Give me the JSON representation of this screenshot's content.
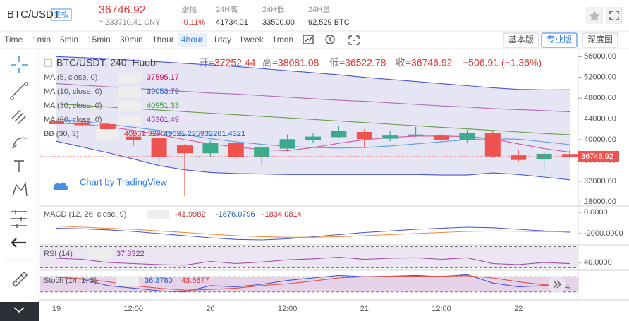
{
  "header": {
    "symbol": "BTC/USDT",
    "badge": "主板",
    "price": "36746.92",
    "cny": "≈ 233710.41 CNY",
    "stats": [
      {
        "label": "涨幅",
        "value": "-0.11%"
      },
      {
        "label": "24H高",
        "value": "41734.01"
      },
      {
        "label": "24H低",
        "value": "33500.00"
      },
      {
        "label": "24H量",
        "value": "92,529 BTC"
      }
    ]
  },
  "toolbar": {
    "intervals": [
      {
        "label": "Time"
      },
      {
        "label": "1min"
      },
      {
        "label": "5min"
      },
      {
        "label": "15min"
      },
      {
        "label": "30min"
      },
      {
        "label": "1hour"
      },
      {
        "label": "4hour",
        "active": true
      },
      {
        "label": "1day"
      },
      {
        "label": "1week"
      },
      {
        "label": "1mon"
      }
    ],
    "views": [
      {
        "label": "基本版"
      },
      {
        "label": "专业版",
        "active": true
      },
      {
        "label": "深度图"
      }
    ]
  },
  "chart_data": {
    "type": "candlestick",
    "title": "BTC/USDT, 240, Huobi",
    "ohlc_legend": [
      {
        "label": "开=",
        "value": "37252.44"
      },
      {
        "label": "高=",
        "value": "38081.08"
      },
      {
        "label": "低=",
        "value": "36522.78"
      },
      {
        "label": "收=",
        "value": "36746.92"
      }
    ],
    "change": "−506.91 (−1.36%)",
    "watermark": "Chart by TradingView",
    "categories": [
      "19",
      null,
      null,
      "12:00",
      null,
      null,
      "20",
      null,
      null,
      "12:00",
      null,
      null,
      "21",
      null,
      null,
      "12:00",
      null,
      null,
      "22",
      null,
      null
    ],
    "open": [
      43500,
      43300,
      43000,
      40600,
      40300,
      38900,
      37400,
      39400,
      36700,
      38300,
      40000,
      40500,
      41500,
      40200,
      40700,
      40800,
      39900,
      41300,
      37000,
      36300,
      37252.44
    ],
    "high": [
      43800,
      43600,
      43300,
      41000,
      40500,
      39200,
      39800,
      40000,
      38700,
      41000,
      41300,
      42600,
      42000,
      41600,
      42500,
      41100,
      41900,
      41700,
      38000,
      37600,
      38081.08
    ],
    "low": [
      43000,
      42600,
      40200,
      38800,
      35600,
      29100,
      36700,
      36400,
      35000,
      37800,
      39400,
      40300,
      38500,
      39700,
      40500,
      39500,
      39300,
      36500,
      35800,
      34100,
      36522.78
    ],
    "close": [
      43000,
      42800,
      40600,
      40000,
      36700,
      37400,
      39400,
      36700,
      38500,
      40100,
      40600,
      41700,
      40100,
      40800,
      41000,
      39900,
      41300,
      36800,
      36100,
      37300,
      36746.92
    ],
    "up_color": "#3bab8e",
    "down_color": "#ef5350",
    "last_price": 36746.92,
    "ylim": [
      27500,
      57400
    ],
    "yticks": [
      {
        "value": 56000,
        "label": "56000.00"
      },
      {
        "value": 52000,
        "label": "52000.00"
      },
      {
        "value": 48000,
        "label": "48000.00"
      },
      {
        "value": 44000,
        "label": "44000.00"
      },
      {
        "value": 40000,
        "label": "40000.00"
      },
      {
        "value": 36000,
        "label": "36000.00"
      },
      {
        "value": 32000,
        "label": "32000.00"
      },
      {
        "value": 28000,
        "label": "28000.00"
      }
    ],
    "indicators": [
      {
        "label": "MA (5, close, 0)",
        "readout": [
          "37595.17"
        ],
        "readout_colors": [
          "#c2185b"
        ],
        "lines": [
          {
            "color": "#d6569e",
            "values": [
              43200,
              43000,
              42500,
              41800,
              41000,
              40000,
              39200,
              38600,
              38100,
              37900,
              38500,
              39300,
              40000,
              40400,
              40700,
              40700,
              40600,
              40200,
              39200,
              38300,
              37595.17
            ]
          }
        ]
      },
      {
        "label": "MA (10, close, 0)",
        "readout": [
          "39053.79"
        ],
        "readout_colors": [
          "#1e5bbf"
        ],
        "lines": [
          {
            "color": "#5b9be6",
            "values": [
              44000,
              43500,
              43000,
              42400,
              41800,
              41000,
              40200,
              39600,
              39100,
              38700,
              38500,
              38400,
              38500,
              38800,
              39200,
              39600,
              40000,
              40200,
              40100,
              39600,
              39053.79
            ]
          }
        ]
      },
      {
        "label": "MA (30, close, 0)",
        "readout": [
          "40951.33"
        ],
        "readout_colors": [
          "#2e9a2e"
        ],
        "lines": [
          {
            "color": "#6a9a4e",
            "values": [
              46900,
              46600,
              46300,
              46000,
              45700,
              45400,
              45100,
              44800,
              44500,
              44200,
              43900,
              43600,
              43300,
              43000,
              42700,
              42400,
              42100,
              41800,
              41500,
              41200,
              40951.33
            ]
          }
        ]
      },
      {
        "label": "MA (60, close, 0)",
        "readout": [
          "45361.49"
        ],
        "readout_colors": [
          "#8e24aa"
        ],
        "lines": [
          {
            "color": "#b06ab3",
            "values": [
              50800,
              50500,
              50200,
              49900,
              49600,
              49300,
              49000,
              48800,
              48500,
              48200,
              47900,
              47600,
              47400,
              47100,
              46800,
              46500,
              46300,
              46000,
              45800,
              45600,
              45361.49
            ]
          }
        ]
      },
      {
        "label": "BB (30, 3)",
        "readout": [
          "40951.3290",
          "49621.2259",
          "32281.4321"
        ],
        "readout_colors": [
          "#d32f2f",
          "#1e5bbf",
          "#1e5bbf"
        ],
        "fill": "#e6e5f3",
        "lines": [
          {
            "color": "#4a56d6",
            "values": [
              56000,
              55800,
              55600,
              55300,
              55000,
              54700,
              54400,
              54100,
              53700,
              53300,
              52900,
              52500,
              52000,
              51600,
              51200,
              50800,
              50400,
              50000,
              49700,
              49600,
              49621.2259
            ]
          },
          {
            "color": "#4a56d6",
            "values": [
              39700,
              38600,
              37500,
              36300,
              35000,
              34200,
              33700,
              33500,
              33400,
              33300,
              33300,
              33300,
              33300,
              33300,
              33300,
              33200,
              33200,
              33600,
              33300,
              32800,
              32281.4321
            ]
          }
        ]
      }
    ],
    "panes": [
      {
        "label": "MACD (12, 26, close, 9)",
        "readout": [
          "-41.9982",
          "-1876.0796",
          "-1834.0814"
        ],
        "readout_colors": [
          "#c62828",
          "#1e5bbf",
          "#c62828"
        ],
        "ylim": [
          -2933,
          533
        ],
        "yticks": [
          {
            "value": 0,
            "label": "0.0000"
          },
          {
            "value": -2000,
            "label": "-2000.0000"
          }
        ],
        "lines": [
          {
            "color": "#4a56d6",
            "values": [
              -1500,
              -1550,
              -1650,
              -1800,
              -2000,
              -2200,
              -2400,
              -2550,
              -2600,
              -2500,
              -2300,
              -2100,
              -1900,
              -1750,
              -1600,
              -1500,
              -1400,
              -1450,
              -1600,
              -1750,
              -1876.0796
            ]
          },
          {
            "color": "#f08c3a",
            "values": [
              -1300,
              -1400,
              -1500,
              -1600,
              -1750,
              -1900,
              -2050,
              -2200,
              -2300,
              -2350,
              -2350,
              -2300,
              -2200,
              -2100,
              -2000,
              -1900,
              -1800,
              -1750,
              -1780,
              -1810,
              -1834.0814
            ]
          }
        ]
      },
      {
        "label": "RSI (14)",
        "readout": [
          "37.8322"
        ],
        "readout_colors": [
          "#8e24aa"
        ],
        "ylim": [
          28,
          72
        ],
        "yticks": [
          {
            "value": 40,
            "label": "40.0000"
          }
        ],
        "bands": [
          30,
          70
        ],
        "fill": "#ece6f3",
        "lines": [
          {
            "color": "#a04aa8",
            "values": [
              48,
              46,
              40,
              38,
              36,
              35,
              42,
              38,
              41,
              45,
              47,
              50,
              46,
              48,
              49,
              46,
              49,
              38,
              36,
              40,
              37.8322
            ]
          }
        ]
      },
      {
        "label": "Stoch (14, 1, 3)",
        "readout": [
          "36.3780",
          "43.6877"
        ],
        "readout_colors": [
          "#1e5bbf",
          "#d32f2f"
        ],
        "ylim": [
          0,
          100
        ],
        "yticks": [],
        "bands": [
          20,
          80
        ],
        "fill": "#e6d3ea",
        "lines": [
          {
            "color": "#4a56d6",
            "values": [
              80,
              70,
              45,
              35,
              25,
              20,
              45,
              40,
              50,
              65,
              75,
              85,
              80,
              82,
              85,
              80,
              88,
              55,
              40,
              45,
              36.378
            ]
          },
          {
            "color": "#e0504a",
            "values": [
              78,
              72,
              60,
              45,
              35,
              27,
              30,
              35,
              45,
              52,
              63,
              75,
              80,
              82,
              82,
              82,
              84,
              75,
              60,
              48,
              43.6877
            ]
          }
        ]
      }
    ]
  }
}
